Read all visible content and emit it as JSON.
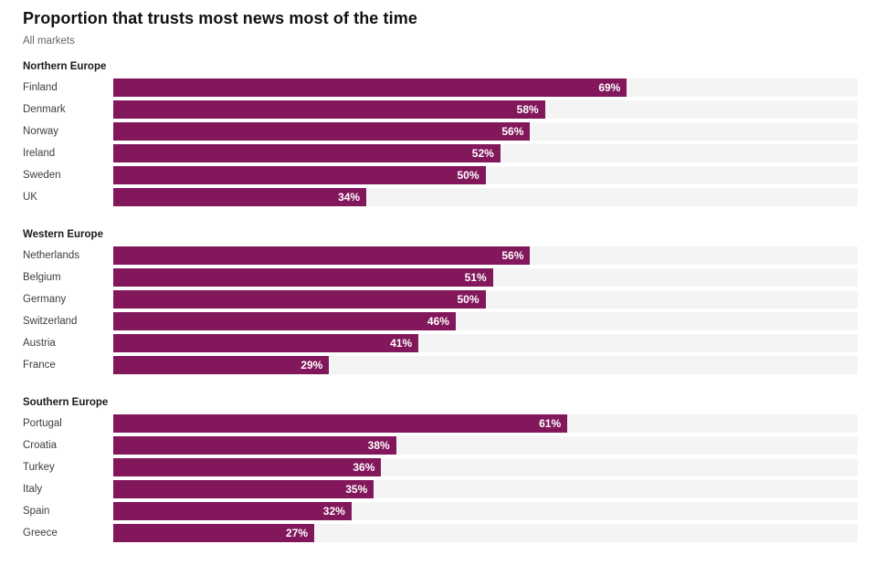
{
  "chart": {
    "title": "Proportion that trusts most news most of the time",
    "subtitle": "All markets",
    "bar_color": "#82175C",
    "track_color": "#f4f4f4",
    "value_text_color": "#ffffff"
  },
  "chart_data": {
    "type": "bar",
    "orientation": "horizontal",
    "title": "Proportion that trusts most news most of the time",
    "subtitle": "All markets",
    "unit": "%",
    "xlim": [
      0,
      100
    ],
    "value_labels": "inside-end",
    "grid": false,
    "legend": false,
    "groups": [
      {
        "label": "Northern Europe",
        "items": [
          {
            "country": "Finland",
            "value": 69
          },
          {
            "country": "Denmark",
            "value": 58
          },
          {
            "country": "Norway",
            "value": 56
          },
          {
            "country": "Ireland",
            "value": 52
          },
          {
            "country": "Sweden",
            "value": 50
          },
          {
            "country": "UK",
            "value": 34
          }
        ]
      },
      {
        "label": "Western Europe",
        "items": [
          {
            "country": "Netherlands",
            "value": 56
          },
          {
            "country": "Belgium",
            "value": 51
          },
          {
            "country": "Germany",
            "value": 50
          },
          {
            "country": "Switzerland",
            "value": 46
          },
          {
            "country": "Austria",
            "value": 41
          },
          {
            "country": "France",
            "value": 29
          }
        ]
      },
      {
        "label": "Southern Europe",
        "items": [
          {
            "country": "Portugal",
            "value": 61
          },
          {
            "country": "Croatia",
            "value": 38
          },
          {
            "country": "Turkey",
            "value": 36
          },
          {
            "country": "Italy",
            "value": 35
          },
          {
            "country": "Spain",
            "value": 32
          },
          {
            "country": "Greece",
            "value": 27
          }
        ]
      }
    ]
  }
}
